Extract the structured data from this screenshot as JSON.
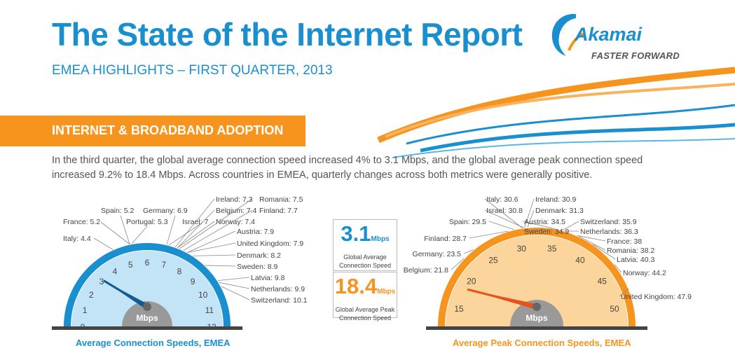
{
  "header": {
    "title": "The State of the Internet Report",
    "subtitle": "EMEA HIGHLIGHTS – FIRST QUARTER, 2013"
  },
  "logo": {
    "name": "Akamai",
    "tagline": "FASTER FORWARD"
  },
  "section": {
    "label": "INTERNET & BROADBAND ADOPTION",
    "intro": "In the third quarter, the global average connection speed increased 4% to 3.1 Mbps, and the global average peak connection speed increased 9.2% to 18.4 Mbps. Across countries in EMEA, quarterly changes across both metrics were generally positive."
  },
  "global_stats": {
    "avg_value": "3.1",
    "avg_unit": "Mbps",
    "avg_label": [
      "Global Average",
      "Connection Speed"
    ],
    "peak_value": "18.4",
    "peak_unit": "Mbps",
    "peak_label": [
      "Global Average Peak",
      "Connection Speed"
    ]
  },
  "colors": {
    "blue": "#1a8fd0",
    "orange": "#f7941d",
    "blue_fill": "#c3e3f7",
    "orange_fill": "#fbd59b",
    "hub": "#999999",
    "needle_blue": "#0d5c94",
    "needle_orange": "#e8501c"
  },
  "chart_data": [
    {
      "type": "gauge",
      "title": "Average Connection Speeds, EMEA",
      "unit": "Mbps",
      "range": [
        0,
        12
      ],
      "ticks": [
        0,
        1,
        2,
        3,
        4,
        5,
        6,
        7,
        8,
        9,
        10,
        11,
        12
      ],
      "needle": 3.1,
      "countries": [
        {
          "label": "Italy: 4.4",
          "value": 4.4
        },
        {
          "label": "France: 5.2",
          "value": 5.2
        },
        {
          "label": "Spain: 5.2",
          "value": 5.2
        },
        {
          "label": "Portugal: 5.3",
          "value": 5.3
        },
        {
          "label": "Germany: 6.9",
          "value": 6.9
        },
        {
          "label": "Israel: 7",
          "value": 7
        },
        {
          "label": "Ireland: 7.3",
          "value": 7.3
        },
        {
          "label": "Belgium: 7.4",
          "value": 7.4
        },
        {
          "label": "Norway: 7.4",
          "value": 7.4
        },
        {
          "label": "Romania: 7.5",
          "value": 7.5
        },
        {
          "label": "Finland: 7.7",
          "value": 7.7
        },
        {
          "label": "Austria: 7.9",
          "value": 7.9
        },
        {
          "label": "United Kingdom: 7.9",
          "value": 7.9
        },
        {
          "label": "Denmark: 8.2",
          "value": 8.2
        },
        {
          "label": "Sweden: 8.9",
          "value": 8.9
        },
        {
          "label": "Latvia: 9.8",
          "value": 9.8
        },
        {
          "label": "Netherlands: 9.9",
          "value": 9.9
        },
        {
          "label": "Switzerland: 10.1",
          "value": 10.1
        }
      ]
    },
    {
      "type": "gauge",
      "title": "Average Peak Connection Speeds, EMEA",
      "unit": "Mbps",
      "range": [
        12,
        53
      ],
      "ticks": [
        15,
        20,
        25,
        30,
        35,
        40,
        45,
        50
      ],
      "needle": 18.4,
      "countries": [
        {
          "label": "Belgium: 21.8",
          "value": 21.8
        },
        {
          "label": "Germany: 23.5",
          "value": 23.5
        },
        {
          "label": "Finland: 28.7",
          "value": 28.7
        },
        {
          "label": "Spain: 29.5",
          "value": 29.5
        },
        {
          "label": "Italy: 30.6",
          "value": 30.6
        },
        {
          "label": "Israel: 30.8",
          "value": 30.8
        },
        {
          "label": "Ireland: 30.9",
          "value": 30.9
        },
        {
          "label": "Denmark: 31.3",
          "value": 31.3
        },
        {
          "label": "Austria: 34.5",
          "value": 34.5
        },
        {
          "label": "Sweden: 34.9",
          "value": 34.9
        },
        {
          "label": "Switzerland: 35.9",
          "value": 35.9
        },
        {
          "label": "Netherlands: 36.3",
          "value": 36.3
        },
        {
          "label": "France: 38",
          "value": 38
        },
        {
          "label": "Romania: 38.2",
          "value": 38.2
        },
        {
          "label": "Latvia: 40.3",
          "value": 40.3
        },
        {
          "label": "Norway: 44.2",
          "value": 44.2
        },
        {
          "label": "United Kingdom: 47.9",
          "value": 47.9
        }
      ]
    }
  ]
}
